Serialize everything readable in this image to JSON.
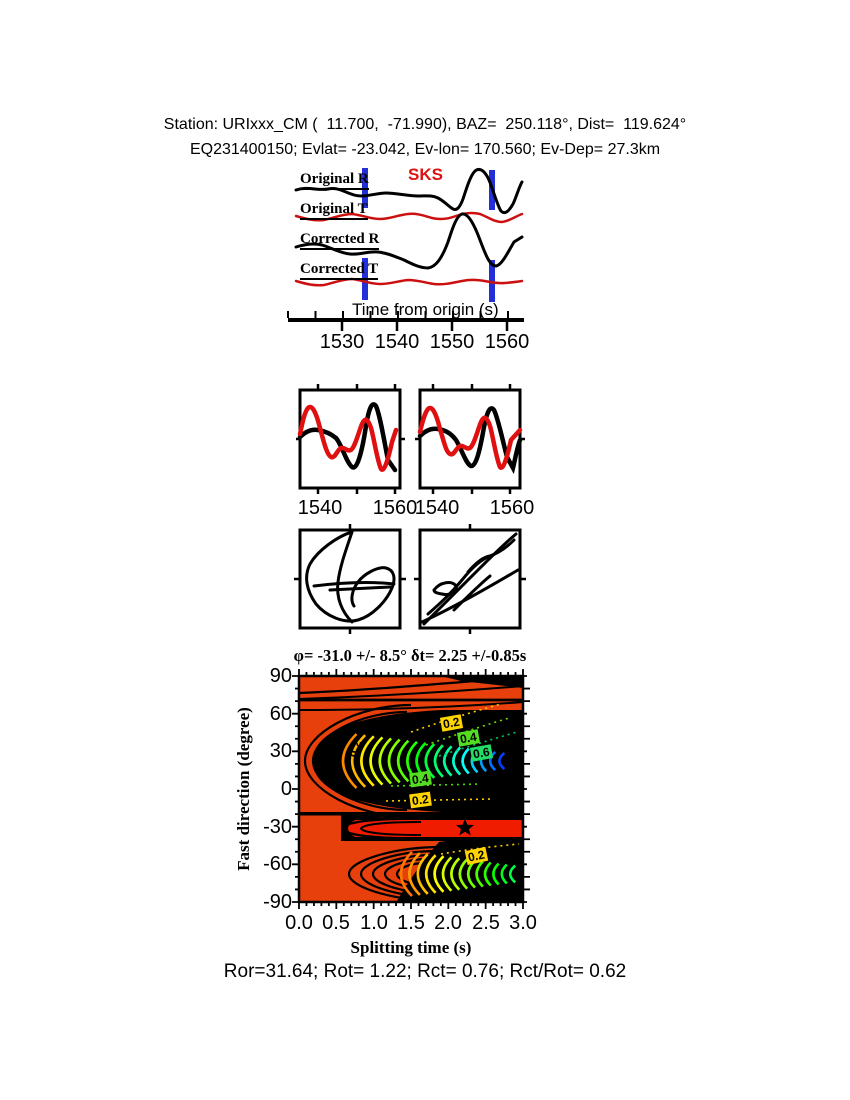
{
  "header": {
    "line1": "Station: URIxxx_CM (  11.700,  -71.990), BAZ=  250.118°, Dist=  119.624°",
    "line2": "EQ231400150; Evlat= -23.042, Ev-lon= 170.560; Ev-Dep= 27.3km"
  },
  "waveforms": {
    "phase_label": "SKS",
    "trace_labels": [
      "Original R",
      "Original T",
      "Corrected R",
      "Corrected T"
    ],
    "axis_title": "Time from origin (s)",
    "ticks": [
      "1530",
      "1540",
      "1550",
      "1560"
    ]
  },
  "comparison": {
    "ticks": [
      "1540",
      "1560",
      "1540",
      "1560"
    ]
  },
  "contour": {
    "title": "φ= -31.0 +/- 8.5° δt= 2.25 +/-0.85s",
    "ylabel": "Fast direction (degree)",
    "xlabel": "Splitting time (s)",
    "yticks": [
      "90",
      "60",
      "30",
      "0",
      "-30",
      "-60",
      "-90"
    ],
    "xticks": [
      "0.0",
      "0.5",
      "1.0",
      "1.5",
      "2.0",
      "2.5",
      "3.0"
    ],
    "labels": [
      {
        "text": "0.2",
        "bg": "#ffd400"
      },
      {
        "text": "0.4",
        "bg": "#55dd22"
      },
      {
        "text": "0.6",
        "bg": "#22dd66"
      },
      {
        "text": "0.4",
        "bg": "#55dd22"
      },
      {
        "text": "0.2",
        "bg": "#ffd400"
      },
      {
        "text": "0.2",
        "bg": "#ffd400"
      },
      {
        "text": "0.2",
        "bg": "none"
      }
    ]
  },
  "footer": {
    "text": "Ror=31.64; Rot= 1.22; Rct= 0.76; Rct/Rot= 0.62"
  },
  "colors": {
    "red_region": "#e8400d",
    "band_red": "#f01c00",
    "trace_red": "#cc1010",
    "window_marker_blue": "#2330d8",
    "phase_red": "#dd1111"
  },
  "chart_data": [
    {
      "type": "line",
      "id": "waveform-traces",
      "traces": [
        "Original R",
        "Original T",
        "Corrected R",
        "Corrected T"
      ],
      "phase_label": "SKS",
      "xlabel": "Time from origin (s)",
      "xticks": [
        1530,
        1540,
        1550,
        1560
      ],
      "window_marker_times_s": [
        1534,
        1557.5
      ]
    },
    {
      "type": "line",
      "id": "fast-slow-overlay",
      "boxes": [
        {
          "name": "original",
          "xticks": [
            1540,
            1560
          ]
        },
        {
          "name": "corrected",
          "xticks": [
            1540,
            1560
          ]
        }
      ]
    },
    {
      "type": "line",
      "id": "particle-motion",
      "boxes": [
        "original",
        "corrected"
      ]
    },
    {
      "type": "contour",
      "id": "splitting-error-surface",
      "title": "φ= -31.0 +/- 8.5° δt= 2.25 +/-0.85s",
      "xlabel": "Splitting time (s)",
      "ylabel": "Fast direction (degree)",
      "xlim": [
        0,
        3
      ],
      "ylim": [
        -90,
        90
      ],
      "xticks": [
        0.0,
        0.5,
        1.0,
        1.5,
        2.0,
        2.5,
        3.0
      ],
      "yticks": [
        90,
        60,
        30,
        0,
        -30,
        -60,
        -90
      ],
      "contour_levels_labeled": [
        0.2,
        0.4,
        0.6
      ],
      "best_fit": {
        "fast_direction_deg": -31.0,
        "fast_direction_err_deg": 8.5,
        "splitting_time_s": 2.25,
        "splitting_time_err_s": 0.85,
        "marker": "star",
        "marker_xy": [
          2.25,
          -31
        ]
      }
    }
  ]
}
